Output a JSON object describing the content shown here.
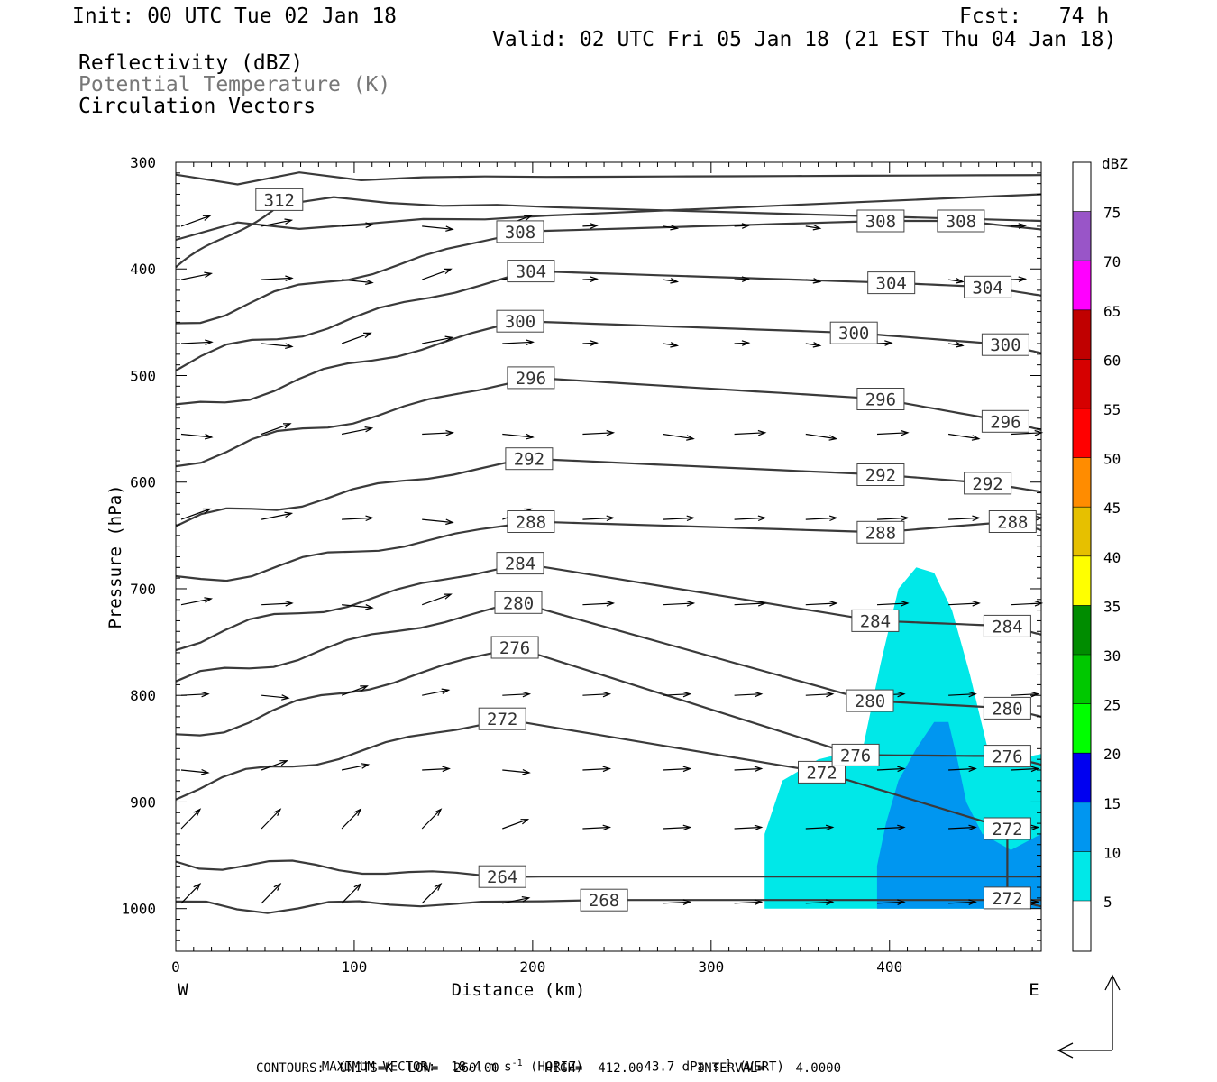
{
  "header": {
    "init": "Init: 00 UTC Tue 02 Jan 18",
    "fcst": "Fcst:   74 h",
    "valid": "Valid: 02 UTC Fri 05 Jan 18 (21 EST Thu 04 Jan 18)",
    "fields": [
      "Reflectivity (dBZ)",
      "Potential Temperature (K)",
      "Circulation Vectors"
    ]
  },
  "footer": {
    "max_vector_label": "MAXIMUM VECTOR:",
    "max_vector_horiz": "18.4 m s",
    "horiz_exp": "-1",
    "horiz_tag": "(HORIZ)",
    "max_vector_vert": "43.7 dPa s",
    "vert_exp": "-1",
    "vert_tag": "(VERT)",
    "contours": "CONTOURS:  UNITS=K  LOW=  260.00      HIGH=  412.00       INTERVAL=    4.0000"
  },
  "chart_data": {
    "type": "contour-cross-section",
    "xlabel": "Distance (km)",
    "ylabel": "Pressure (hPa)",
    "x_ticks": [
      0,
      100,
      200,
      300,
      400
    ],
    "y_ticks": [
      300,
      400,
      500,
      600,
      700,
      800,
      900,
      1000
    ],
    "xlim": [
      0,
      485
    ],
    "ylim": [
      1040,
      300
    ],
    "left_end_label": "W",
    "right_end_label": "E",
    "colorbar": {
      "title": "dBZ",
      "levels": [
        5,
        10,
        15,
        20,
        25,
        30,
        35,
        40,
        45,
        50,
        55,
        60,
        65,
        70,
        75
      ],
      "colors": [
        "#ffffff",
        "#00e8e8",
        "#0096f0",
        "#0000f0",
        "#00ff00",
        "#00c800",
        "#008c00",
        "#ffff00",
        "#e6c000",
        "#ff8c00",
        "#ff0000",
        "#d60000",
        "#c00000",
        "#ff00ff",
        "#9955c8",
        "#ffffff"
      ]
    },
    "reflectivity": [
      {
        "dbz": 5,
        "outline": [
          [
            330,
            1000
          ],
          [
            330,
            930
          ],
          [
            340,
            880
          ],
          [
            360,
            860
          ],
          [
            385,
            850
          ],
          [
            395,
            770
          ],
          [
            405,
            700
          ],
          [
            415,
            680
          ],
          [
            425,
            685
          ],
          [
            435,
            720
          ],
          [
            445,
            780
          ],
          [
            455,
            850
          ],
          [
            470,
            860
          ],
          [
            485,
            855
          ],
          [
            485,
            1000
          ]
        ]
      },
      {
        "dbz": 10,
        "outline": [
          [
            393,
            1000
          ],
          [
            393,
            960
          ],
          [
            398,
            920
          ],
          [
            405,
            880
          ],
          [
            415,
            850
          ],
          [
            425,
            825
          ],
          [
            433,
            825
          ],
          [
            438,
            860
          ],
          [
            443,
            900
          ],
          [
            452,
            930
          ],
          [
            468,
            945
          ],
          [
            485,
            930
          ],
          [
            485,
            1000
          ]
        ]
      }
    ],
    "theta_contours": [
      {
        "value": 264,
        "label_at": [
          183,
          970
        ]
      },
      {
        "value": 268,
        "label_at": [
          240,
          992
        ]
      },
      {
        "value": 272,
        "label_at": [
          183,
          822
        ]
      },
      {
        "value": 272,
        "label_at": [
          362,
          872
        ]
      },
      {
        "value": 272,
        "label_at": [
          466,
          925
        ]
      },
      {
        "value": 272,
        "label_at": [
          466,
          990
        ]
      },
      {
        "value": 276,
        "label_at": [
          190,
          755
        ]
      },
      {
        "value": 276,
        "label_at": [
          381,
          856
        ]
      },
      {
        "value": 276,
        "label_at": [
          466,
          857
        ]
      },
      {
        "value": 280,
        "label_at": [
          192,
          713
        ]
      },
      {
        "value": 280,
        "label_at": [
          389,
          805
        ]
      },
      {
        "value": 280,
        "label_at": [
          466,
          812
        ]
      },
      {
        "value": 284,
        "label_at": [
          193,
          676
        ]
      },
      {
        "value": 284,
        "label_at": [
          392,
          730
        ]
      },
      {
        "value": 284,
        "label_at": [
          466,
          735
        ]
      },
      {
        "value": 288,
        "label_at": [
          199,
          637
        ]
      },
      {
        "value": 288,
        "label_at": [
          395,
          647
        ]
      },
      {
        "value": 288,
        "label_at": [
          469,
          637
        ]
      },
      {
        "value": 292,
        "label_at": [
          198,
          578
        ]
      },
      {
        "value": 292,
        "label_at": [
          395,
          593
        ]
      },
      {
        "value": 292,
        "label_at": [
          455,
          601
        ]
      },
      {
        "value": 296,
        "label_at": [
          199,
          502
        ]
      },
      {
        "value": 296,
        "label_at": [
          395,
          522
        ]
      },
      {
        "value": 296,
        "label_at": [
          465,
          543
        ]
      },
      {
        "value": 300,
        "label_at": [
          193,
          449
        ]
      },
      {
        "value": 300,
        "label_at": [
          380,
          460
        ]
      },
      {
        "value": 300,
        "label_at": [
          465,
          471
        ]
      },
      {
        "value": 304,
        "label_at": [
          199,
          402
        ]
      },
      {
        "value": 304,
        "label_at": [
          401,
          413
        ]
      },
      {
        "value": 304,
        "label_at": [
          455,
          417
        ]
      },
      {
        "value": 308,
        "label_at": [
          193,
          365
        ]
      },
      {
        "value": 308,
        "label_at": [
          395,
          355
        ]
      },
      {
        "value": 308,
        "label_at": [
          440,
          355
        ]
      },
      {
        "value": 312,
        "label_at": [
          58,
          335
        ]
      }
    ]
  }
}
